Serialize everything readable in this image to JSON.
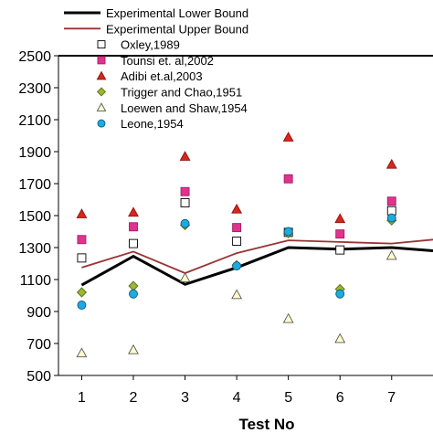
{
  "chart_data": {
    "type": "scatter",
    "xlabel": "Test No",
    "ylabel": "",
    "xlim": [
      0.55,
      7.8
    ],
    "ylim": [
      500,
      2500
    ],
    "x_ticks": [
      1,
      2,
      3,
      4,
      5,
      6,
      7
    ],
    "y_ticks": [
      500,
      700,
      900,
      1100,
      1300,
      1500,
      1700,
      1900,
      2100,
      2300,
      2500
    ],
    "grid": false,
    "legend_position": "top-left",
    "series": [
      {
        "name": "Experimental Lower Bound",
        "kind": "line",
        "color": "#000000",
        "x": [
          1,
          2,
          3,
          4,
          5,
          6,
          7,
          7.8
        ],
        "y": [
          1065,
          1245,
          1070,
          1175,
          1300,
          1290,
          1300,
          1280
        ]
      },
      {
        "name": "Experimental Upper Bound",
        "kind": "line",
        "color": "#993333",
        "x": [
          1,
          2,
          3,
          4,
          5,
          6,
          7,
          7.8
        ],
        "y": [
          1175,
          1275,
          1140,
          1265,
          1345,
          1335,
          1325,
          1350
        ]
      },
      {
        "name": "Oxley,1989",
        "kind": "marker",
        "marker": "square-open",
        "color": "#ffffff",
        "x": [
          1,
          2,
          3,
          4,
          5,
          6,
          7
        ],
        "y": [
          1235,
          1325,
          1580,
          1340,
          1395,
          1285,
          1530
        ]
      },
      {
        "name": "Tounsi et. al,2002",
        "kind": "marker",
        "marker": "square",
        "color": "#e0338f",
        "x": [
          1,
          2,
          3,
          4,
          5,
          6,
          7
        ],
        "y": [
          1350,
          1430,
          1650,
          1425,
          1730,
          1385,
          1590
        ]
      },
      {
        "name": "Adibi et.al,2003",
        "kind": "marker",
        "marker": "triangle",
        "color": "#d9261c",
        "x": [
          1,
          2,
          3,
          4,
          5,
          6,
          7
        ],
        "y": [
          1510,
          1520,
          1870,
          1540,
          1990,
          1480,
          1820
        ]
      },
      {
        "name": "Trigger and Chao,1951",
        "kind": "marker",
        "marker": "diamond",
        "color": "#99b833",
        "x": [
          1,
          2,
          3,
          4,
          5,
          6,
          7
        ],
        "y": [
          1020,
          1060,
          1440,
          1190,
          1390,
          1040,
          1470
        ]
      },
      {
        "name": "Loewen and Shaw,1954",
        "kind": "marker",
        "marker": "triangle-open",
        "color": "#ffffcc",
        "x": [
          1,
          2,
          3,
          4,
          5,
          6,
          7
        ],
        "y": [
          640,
          660,
          1110,
          1005,
          855,
          730,
          1250
        ]
      },
      {
        "name": "Leone,1954",
        "kind": "marker",
        "marker": "circle",
        "color": "#1fa9e0",
        "x": [
          1,
          2,
          3,
          4,
          5,
          6,
          7
        ],
        "y": [
          940,
          1010,
          1450,
          1185,
          1400,
          1010,
          1485
        ]
      }
    ]
  }
}
